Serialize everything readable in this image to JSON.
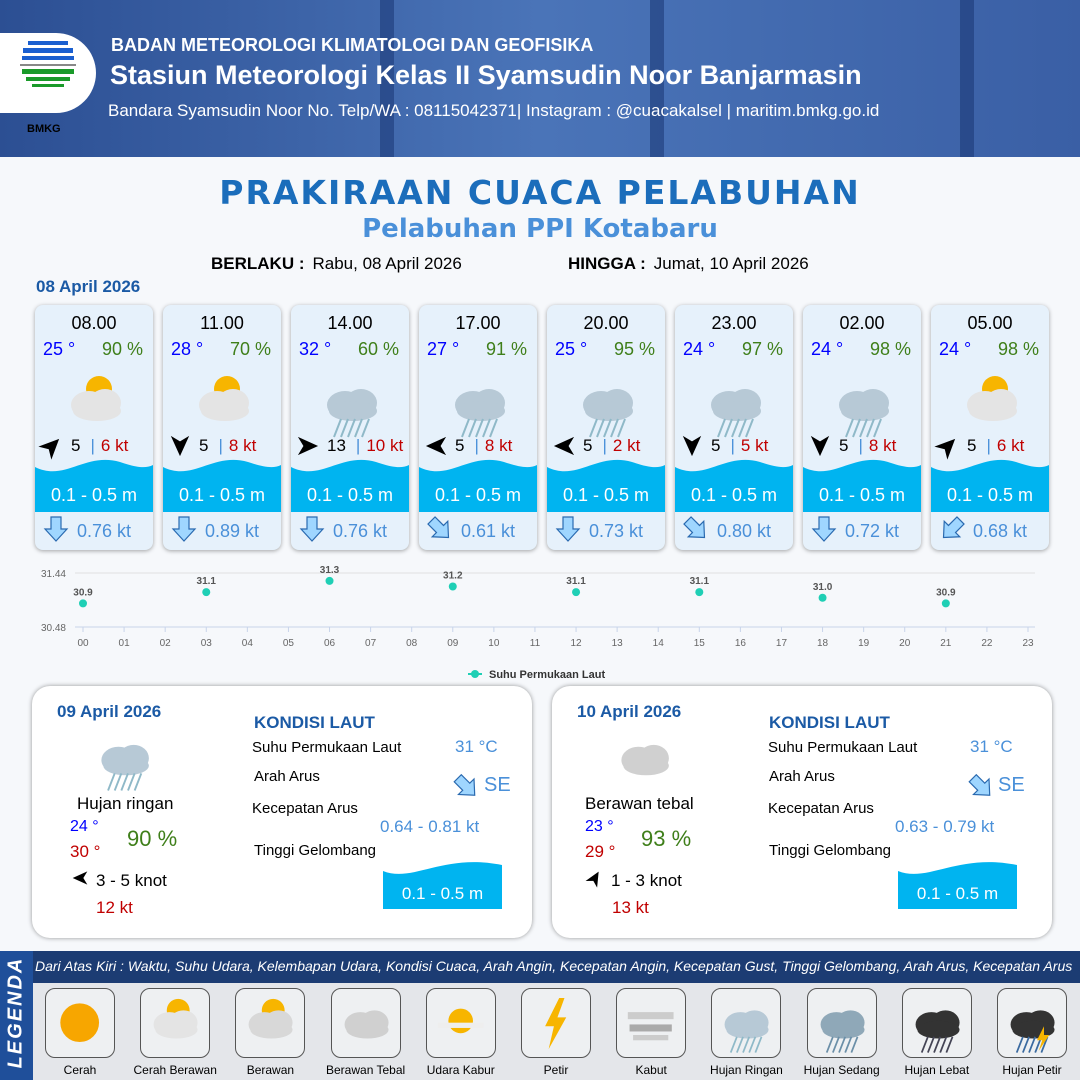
{
  "header": {
    "org": "BADAN METEOROLOGI KLIMATOLOGI DAN GEOFISIKA",
    "station": "Stasiun Meteorologi Kelas II Syamsudin Noor Banjarmasin",
    "contact": "Bandara Syamsudin Noor No. Telp/WA : 08115042371| Instagram : @cuacakalsel | maritim.bmkg.go.id",
    "logo_text": "BMKG"
  },
  "title": "PRAKIRAAN CUACA PELABUHAN",
  "subtitle": "Pelabuhan PPI Kotabaru",
  "validity": {
    "from_label": "BERLAKU :",
    "from": "Rabu, 08 April 2026",
    "to_label": "HINGGA :",
    "to": "Jumat, 10 April 2026"
  },
  "day1": {
    "date": "08 April 2026",
    "cards": [
      {
        "time": "08.00",
        "temp": "25 °",
        "hum": "90 %",
        "weather": "cerah-berawan",
        "wind_dir_deg": 45,
        "wind": "5",
        "gust": "6 kt",
        "wave": "0.1 - 0.5 m",
        "current_dir_deg": 180,
        "current": "0.76 kt"
      },
      {
        "time": "11.00",
        "temp": "28 °",
        "hum": "70 %",
        "weather": "cerah-berawan",
        "wind_dir_deg": 180,
        "wind": "5",
        "gust": "8 kt",
        "wave": "0.1 - 0.5 m",
        "current_dir_deg": 180,
        "current": "0.89 kt"
      },
      {
        "time": "14.00",
        "temp": "32 °",
        "hum": "60 %",
        "weather": "hujan-ringan",
        "wind_dir_deg": 90,
        "wind": "13",
        "gust": "10 kt",
        "wave": "0.1 - 0.5 m",
        "current_dir_deg": 180,
        "current": "0.76 kt"
      },
      {
        "time": "17.00",
        "temp": "27 °",
        "hum": "91 %",
        "weather": "hujan-ringan",
        "wind_dir_deg": 270,
        "wind": "5",
        "gust": "8 kt",
        "wave": "0.1 - 0.5 m",
        "current_dir_deg": 135,
        "current": "0.61 kt"
      },
      {
        "time": "20.00",
        "temp": "25 °",
        "hum": "95 %",
        "weather": "hujan-ringan",
        "wind_dir_deg": 270,
        "wind": "5",
        "gust": "2 kt",
        "wave": "0.1 - 0.5 m",
        "current_dir_deg": 180,
        "current": "0.73 kt"
      },
      {
        "time": "23.00",
        "temp": "24 °",
        "hum": "97 %",
        "weather": "hujan-ringan",
        "wind_dir_deg": 180,
        "wind": "5",
        "gust": "5 kt",
        "wave": "0.1 - 0.5 m",
        "current_dir_deg": 135,
        "current": "0.80 kt"
      },
      {
        "time": "02.00",
        "temp": "24 °",
        "hum": "98 %",
        "weather": "hujan-ringan",
        "wind_dir_deg": 180,
        "wind": "5",
        "gust": "8 kt",
        "wave": "0.1 - 0.5 m",
        "current_dir_deg": 180,
        "current": "0.72 kt"
      },
      {
        "time": "05.00",
        "temp": "24 °",
        "hum": "98 %",
        "weather": "cerah-berawan",
        "wind_dir_deg": 45,
        "wind": "5",
        "gust": "6 kt",
        "wave": "0.1 - 0.5 m",
        "current_dir_deg": 225,
        "current": "0.68 kt"
      }
    ]
  },
  "chart_data": {
    "type": "scatter",
    "x_ticks": [
      "00",
      "01",
      "02",
      "03",
      "04",
      "05",
      "06",
      "07",
      "08",
      "09",
      "10",
      "11",
      "12",
      "13",
      "14",
      "15",
      "16",
      "17",
      "18",
      "19",
      "20",
      "21",
      "22",
      "23"
    ],
    "y_ticks": [
      "31.44",
      "30.48"
    ],
    "ylim": [
      30.48,
      31.44
    ],
    "series": [
      {
        "name": "Suhu Permukaan Laut",
        "color": "#1fcfb5",
        "x": [
          0,
          3,
          6,
          9,
          12,
          15,
          18,
          21
        ],
        "y": [
          30.9,
          31.1,
          31.3,
          31.2,
          31.1,
          31.1,
          31.0,
          30.9
        ],
        "labels": [
          "30.9",
          "31.1",
          "31.3",
          "31.2",
          "31.1",
          "31.1",
          "31.0",
          "30.9"
        ]
      }
    ],
    "legend": "bottom",
    "grid": true
  },
  "panels": [
    {
      "date": "09 April 2026",
      "weather": "hujan-ringan",
      "condition": "Hujan ringan",
      "tmin": "24 °",
      "tmax": "30 °",
      "hum": "90 %",
      "wind_dir_deg": 270,
      "wind": "3  - 5 knot",
      "gust": "12 kt",
      "sea_title": "KONDISI LAUT",
      "sst_label": "Suhu Permukaan Laut",
      "sst": "31 °C",
      "dir_label": "Arah Arus",
      "dir": "SE",
      "speed_label": "Kecepatan Arus",
      "speed": "0.64 - 0.81 kt",
      "wave_label": "Tinggi Gelombang",
      "wave": "0.1 - 0.5 m"
    },
    {
      "date": "10 April 2026",
      "weather": "berawan-tebal",
      "condition": "Berawan tebal",
      "tmin": "23 °",
      "tmax": "29 °",
      "hum": "93 %",
      "wind_dir_deg": 30,
      "wind": "1  - 3 knot",
      "gust": "13 kt",
      "sea_title": "KONDISI LAUT",
      "sst_label": "Suhu Permukaan Laut",
      "sst": "31 °C",
      "dir_label": "Arah Arus",
      "dir": "SE",
      "speed_label": "Kecepatan Arus",
      "speed": "0.63 - 0.79 kt",
      "wave_label": "Tinggi Gelombang",
      "wave": "0.1 - 0.5 m"
    }
  ],
  "legend": {
    "side": "LEGENDA",
    "description": "Dari Atas Kiri : Waktu, Suhu Udara, Kelembapan Udara, Kondisi Cuaca, Arah Angin, Kecepatan Angin, Kecepatan Gust, Tinggi Gelombang, Arah Arus, Kecepatan Arus",
    "items": [
      {
        "label": "Cerah",
        "icon": "cerah"
      },
      {
        "label": "Cerah Berawan",
        "icon": "cerah-berawan"
      },
      {
        "label": "Berawan",
        "icon": "berawan"
      },
      {
        "label": "Berawan Tebal",
        "icon": "berawan-tebal"
      },
      {
        "label": "Udara Kabur",
        "icon": "udara-kabur"
      },
      {
        "label": "Petir",
        "icon": "petir"
      },
      {
        "label": "Kabut",
        "icon": "kabut"
      },
      {
        "label": "Hujan Ringan",
        "icon": "hujan-ringan"
      },
      {
        "label": "Hujan Sedang",
        "icon": "hujan-sedang"
      },
      {
        "label": "Hujan Lebat",
        "icon": "hujan-lebat"
      },
      {
        "label": "Hujan Petir",
        "icon": "hujan-petir"
      }
    ]
  },
  "colors": {
    "title": "#1b6dbb",
    "wave": "#00b4f0",
    "temp": "#0000ff",
    "hum": "#3f7f1a",
    "gust": "#c00000",
    "current": "#4a90d9"
  }
}
